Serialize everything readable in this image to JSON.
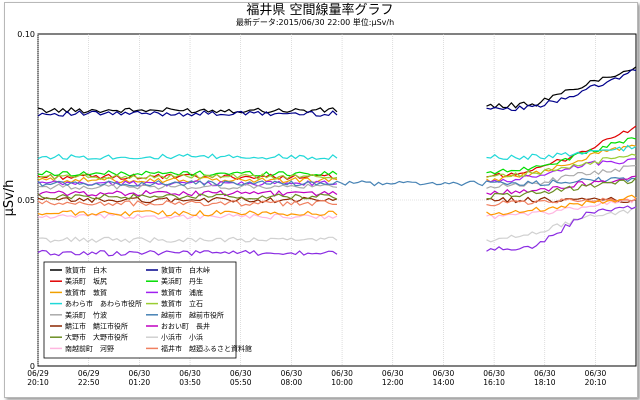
{
  "chart_data": {
    "type": "line",
    "title": "福井県 空間線量率グラフ",
    "subtitle": "最新データ:2015/06/30 22:00  単位:μSv/h",
    "ylabel": "μSv/h",
    "ylim": [
      0,
      0.1
    ],
    "yticks": [
      "0",
      "0.05",
      "0.10"
    ],
    "grid": true,
    "legend_position": "bottom-left",
    "xticks": [
      {
        "l1": "06/29",
        "l2": "20:10"
      },
      {
        "l1": "06/29",
        "l2": "22:50"
      },
      {
        "l1": "06/30",
        "l2": "01:20"
      },
      {
        "l1": "06/30",
        "l2": "03:50"
      },
      {
        "l1": "06/30",
        "l2": "05:50"
      },
      {
        "l1": "06/30",
        "l2": "08:00"
      },
      {
        "l1": "06/30",
        "l2": "10:00"
      },
      {
        "l1": "06/30",
        "l2": "12:00"
      },
      {
        "l1": "06/30",
        "l2": "14:00"
      },
      {
        "l1": "06/30",
        "l2": "16:10"
      },
      {
        "l1": "06/30",
        "l2": "18:10"
      },
      {
        "l1": "06/30",
        "l2": "20:10"
      }
    ],
    "series": [
      {
        "name": "敦賀市　白木",
        "color": "#000000",
        "values": [
          0.077,
          0.077,
          0.077,
          0.077,
          0.077,
          0.077,
          0.077,
          null,
          null,
          0.078,
          0.079,
          0.085,
          0.09
        ]
      },
      {
        "name": "敦賀市　白木峠",
        "color": "#00008b",
        "values": [
          0.076,
          0.076,
          0.076,
          0.076,
          0.076,
          0.076,
          0.076,
          null,
          null,
          0.077,
          0.078,
          0.083,
          0.089
        ]
      },
      {
        "name": "美浜町　坂尻",
        "color": "#e00000",
        "values": [
          0.057,
          0.057,
          0.057,
          0.057,
          0.057,
          0.057,
          0.057,
          null,
          null,
          0.057,
          0.059,
          0.065,
          0.072
        ]
      },
      {
        "name": "美浜町　丹生",
        "color": "#00dd00",
        "values": [
          0.058,
          0.058,
          0.058,
          0.058,
          0.058,
          0.058,
          0.058,
          null,
          null,
          0.058,
          0.06,
          0.064,
          0.069
        ]
      },
      {
        "name": "敦賀市　敦賀",
        "color": "#f0a000",
        "values": [
          0.056,
          0.056,
          0.056,
          0.056,
          0.056,
          0.056,
          0.056,
          null,
          null,
          0.056,
          0.058,
          0.063,
          0.067
        ]
      },
      {
        "name": "敦賀市　浦底",
        "color": "#a020f0",
        "values": [
          0.055,
          0.055,
          0.055,
          0.055,
          0.055,
          0.055,
          0.055,
          null,
          null,
          0.055,
          0.057,
          0.061,
          0.062
        ]
      },
      {
        "name": "あわら市　あわら市役所",
        "color": "#20d8d8",
        "values": [
          0.063,
          0.063,
          0.063,
          0.063,
          0.063,
          0.063,
          0.063,
          null,
          null,
          0.063,
          0.063,
          0.064,
          0.066
        ]
      },
      {
        "name": "敦賀市　立石",
        "color": "#9acd32",
        "values": [
          0.057,
          0.057,
          0.057,
          0.057,
          0.057,
          0.057,
          0.057,
          null,
          null,
          0.057,
          0.058,
          0.061,
          0.064
        ]
      },
      {
        "name": "美浜町　竹波",
        "color": "#aaaaaa",
        "values": [
          0.054,
          0.054,
          0.054,
          0.054,
          0.054,
          0.054,
          0.054,
          null,
          null,
          0.054,
          0.055,
          0.058,
          0.06
        ]
      },
      {
        "name": "越前市　越前市役所",
        "color": "#4682b4",
        "values": [
          0.055,
          0.055,
          0.055,
          0.055,
          0.055,
          0.055,
          0.055,
          0.055,
          0.055,
          0.055,
          0.055,
          0.056,
          0.056
        ]
      },
      {
        "name": "鯖江市　鯖江市役所",
        "color": "#8b2500",
        "values": [
          0.05,
          0.05,
          0.05,
          0.05,
          0.05,
          0.05,
          0.05,
          null,
          null,
          0.05,
          0.05,
          0.05,
          0.05
        ]
      },
      {
        "name": "おおい町　長井",
        "color": "#c000c0",
        "values": [
          0.052,
          0.052,
          0.052,
          0.052,
          0.052,
          0.052,
          0.052,
          null,
          null,
          0.052,
          0.053,
          0.055,
          0.057
        ]
      },
      {
        "name": "大野市　大野市役所",
        "color": "#6b8e23",
        "values": [
          0.051,
          0.051,
          0.051,
          0.051,
          0.051,
          0.051,
          0.051,
          null,
          null,
          0.051,
          0.052,
          0.054,
          0.056
        ]
      },
      {
        "name": "小浜市　小浜",
        "color": "#d0d0d0",
        "values": [
          0.038,
          0.038,
          0.038,
          0.038,
          0.038,
          0.038,
          0.038,
          null,
          null,
          0.038,
          0.04,
          0.045,
          0.047
        ]
      },
      {
        "name": "南越前町　河野",
        "color": "#ffb6e0",
        "values": [
          0.045,
          0.045,
          0.045,
          0.045,
          0.045,
          0.045,
          0.045,
          null,
          null,
          0.045,
          0.046,
          0.048,
          0.05
        ]
      },
      {
        "name": "福井市　越廼ふるさと資料館",
        "color": "#f08060",
        "values": [
          0.049,
          0.049,
          0.049,
          0.049,
          0.049,
          0.049,
          0.049,
          null,
          null,
          0.049,
          0.049,
          0.05,
          0.05
        ]
      },
      {
        "name": "",
        "color": "#ff9900",
        "values": [
          0.046,
          0.046,
          0.046,
          0.046,
          0.046,
          0.046,
          0.046,
          null,
          null,
          0.046,
          0.047,
          0.049,
          0.051
        ]
      },
      {
        "name": "",
        "color": "#8a2be2",
        "values": [
          0.034,
          0.034,
          0.034,
          0.034,
          0.034,
          0.034,
          0.034,
          null,
          null,
          0.035,
          0.036,
          0.046,
          0.048
        ]
      }
    ]
  }
}
